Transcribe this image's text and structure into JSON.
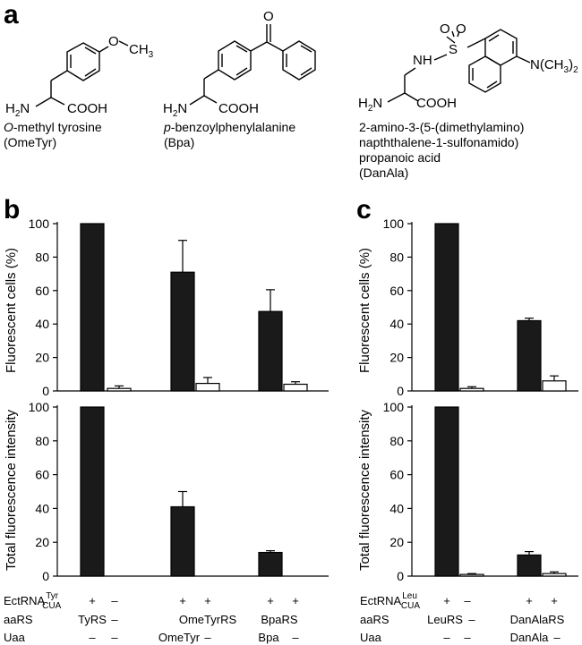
{
  "panel_a": {
    "letter": "a",
    "molecules": [
      {
        "name_lines": [
          "O-methyl tyrosine",
          "(OmeTyr)"
        ],
        "atoms": {
          "o": "O",
          "ch3": "CH",
          "ch3_sub": "3",
          "h2n": "H",
          "h2n_sub": "2",
          "h2n_n": "N",
          "cooh": "COOH"
        }
      },
      {
        "name_lines": [
          "p-benzoylphenylalanine",
          "(Bpa)"
        ],
        "atoms": {
          "o": "O",
          "h2n": "H",
          "h2n_sub": "2",
          "h2n_n": "N",
          "cooh": "COOH"
        }
      },
      {
        "name_lines": [
          "2-amino-3-(5-(dimethylamino)",
          "napththalene-1-sulfonamido)",
          "propanoic acid",
          "(DanAla)"
        ],
        "atoms": {
          "o1": "O",
          "o2": "O",
          "s": "S",
          "nh": "NH",
          "nme2": "N(CH",
          "nme2_sub": "3",
          "nme2_end": ")",
          "nme2_end_sub": "2",
          "h2n": "H",
          "h2n_sub": "2",
          "h2n_n": "N",
          "cooh": "COOH"
        }
      }
    ]
  },
  "panel_b": {
    "letter": "b",
    "rows": {
      "trna": {
        "label": "EctRNA",
        "sup": "Tyr",
        "sub": "CUA",
        "values": [
          "+",
          "–",
          "+",
          "+",
          "+",
          "+"
        ]
      },
      "aars": {
        "label": "aaRS",
        "values": [
          "TyRS",
          "–",
          "OmeTyrRS",
          "",
          "BpaRS",
          ""
        ]
      },
      "uaa": {
        "label": "Uaa",
        "values": [
          "–",
          "–",
          "OmeTyr",
          "–",
          "Bpa",
          "–"
        ]
      }
    }
  },
  "panel_c": {
    "letter": "c",
    "rows": {
      "trna": {
        "label": "EctRNA",
        "sup": "Leu",
        "sub": "CUA",
        "values": [
          "+",
          "–",
          "+",
          "+"
        ]
      },
      "aars": {
        "label": "aaRS",
        "values": [
          "LeuRS",
          "–",
          "DanAlaRS",
          ""
        ]
      },
      "uaa": {
        "label": "Uaa",
        "values": [
          "–",
          "–",
          "DanAla",
          "–"
        ]
      }
    }
  },
  "chart_data": [
    {
      "panel": "b",
      "type": "bar",
      "ylabel": "Fluorescent cells (%)",
      "ylim": [
        0,
        100
      ],
      "yticks": [
        "0",
        "20",
        "40",
        "60",
        "80",
        "100"
      ],
      "values": [
        100,
        1.5,
        71,
        4.5,
        47.5,
        4
      ],
      "errors": [
        0,
        1.5,
        19,
        3.5,
        13,
        1.5
      ],
      "fill": [
        "#1a1a1a",
        "#ffffff",
        "#1a1a1a",
        "#ffffff",
        "#1a1a1a",
        "#ffffff"
      ]
    },
    {
      "panel": "b",
      "type": "bar",
      "ylabel": "Total fluorescence intensity",
      "ylim": [
        0,
        100
      ],
      "yticks": [
        "0",
        "20",
        "40",
        "60",
        "80",
        "100"
      ],
      "values": [
        100,
        0,
        41,
        0,
        14,
        0
      ],
      "errors": [
        0,
        0,
        9,
        0,
        1,
        0
      ],
      "fill": [
        "#1a1a1a",
        "#ffffff",
        "#1a1a1a",
        "#ffffff",
        "#1a1a1a",
        "#ffffff"
      ]
    },
    {
      "panel": "c",
      "type": "bar",
      "ylabel": "Fluorescent cells (%)",
      "ylim": [
        0,
        100
      ],
      "yticks": [
        "0",
        "20",
        "40",
        "60",
        "80",
        "100"
      ],
      "values": [
        100,
        1.5,
        42,
        6
      ],
      "errors": [
        0,
        1,
        1.5,
        3
      ],
      "fill": [
        "#1a1a1a",
        "#ffffff",
        "#1a1a1a",
        "#ffffff"
      ]
    },
    {
      "panel": "c",
      "type": "bar",
      "ylabel": "Total fluorescence intensity",
      "ylim": [
        0,
        100
      ],
      "yticks": [
        "0",
        "20",
        "40",
        "60",
        "80",
        "100"
      ],
      "values": [
        100,
        1,
        12.5,
        1.5
      ],
      "errors": [
        0,
        0.5,
        2,
        1
      ],
      "fill": [
        "#1a1a1a",
        "#ffffff",
        "#1a1a1a",
        "#ffffff"
      ]
    }
  ]
}
